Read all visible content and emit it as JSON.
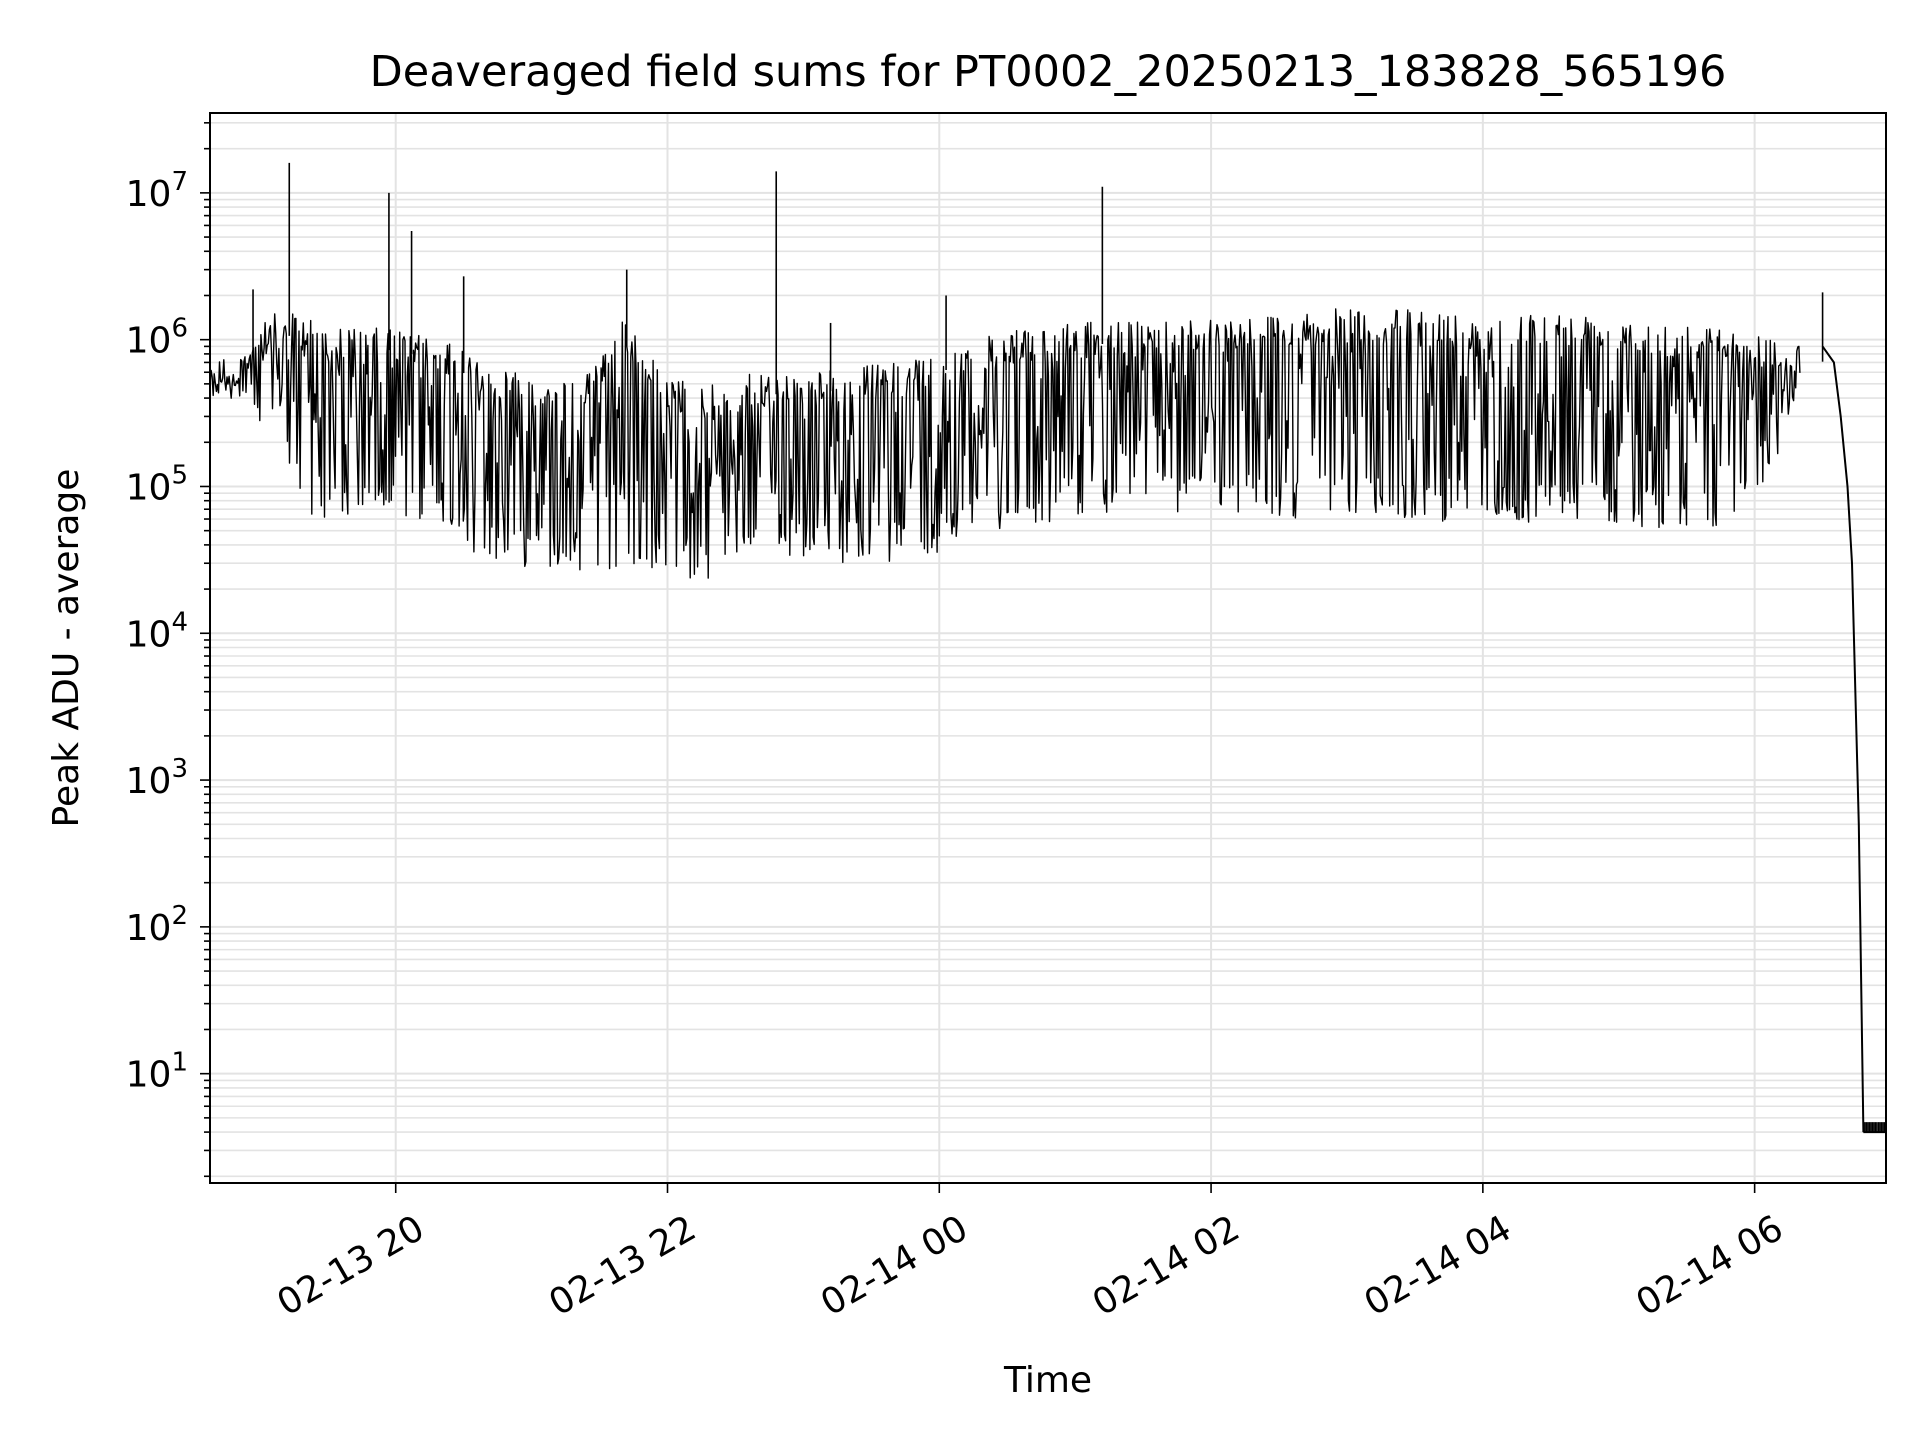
{
  "chart_data": {
    "type": "line",
    "title": "Deaveraged field sums for PT0002_20250213_183828_565196",
    "xlabel": "Time",
    "ylabel": "Peak ADU - average",
    "y_scale": "log",
    "ylim": [
      1.8,
      35000000
    ],
    "xlim": [
      "2025-02-13 18:38",
      "2025-02-14 06:58"
    ],
    "x_ticks": [
      {
        "label": "02-13 20",
        "time": "2025-02-13 20:00"
      },
      {
        "label": "02-13 22",
        "time": "2025-02-13 22:00"
      },
      {
        "label": "02-14 00",
        "time": "2025-02-14 00:00"
      },
      {
        "label": "02-14 02",
        "time": "2025-02-14 02:00"
      },
      {
        "label": "02-14 04",
        "time": "2025-02-14 04:00"
      },
      {
        "label": "02-14 06",
        "time": "2025-02-14 06:00"
      }
    ],
    "y_ticks": [
      {
        "base": "10",
        "exp": "1",
        "value": 10
      },
      {
        "base": "10",
        "exp": "2",
        "value": 100
      },
      {
        "base": "10",
        "exp": "3",
        "value": 1000
      },
      {
        "base": "10",
        "exp": "4",
        "value": 10000
      },
      {
        "base": "10",
        "exp": "5",
        "value": 100000
      },
      {
        "base": "10",
        "exp": "6",
        "value": 1000000
      },
      {
        "base": "10",
        "exp": "7",
        "value": 10000000
      }
    ],
    "grid": true,
    "line_color": "#000000",
    "series": [
      {
        "envelope": [
          {
            "t": "2025-02-13 18:38",
            "hi": 700000,
            "lo": 380000
          },
          {
            "t": "2025-02-13 18:50",
            "hi": 650000,
            "lo": 420000
          },
          {
            "t": "2025-02-13 19:00",
            "hi": 1500000,
            "lo": 200000
          },
          {
            "t": "2025-02-13 19:10",
            "hi": 1500000,
            "lo": 150000
          },
          {
            "t": "2025-02-13 19:20",
            "hi": 1500000,
            "lo": 65000
          },
          {
            "t": "2025-02-13 19:40",
            "hi": 1200000,
            "lo": 55000
          },
          {
            "t": "2025-02-13 20:00",
            "hi": 1200000,
            "lo": 60000
          },
          {
            "t": "2025-02-13 20:20",
            "hi": 1000000,
            "lo": 55000
          },
          {
            "t": "2025-02-13 20:40",
            "hi": 700000,
            "lo": 30000
          },
          {
            "t": "2025-02-13 21:00",
            "hi": 600000,
            "lo": 28000
          },
          {
            "t": "2025-02-13 21:20",
            "hi": 500000,
            "lo": 27000
          },
          {
            "t": "2025-02-13 21:40",
            "hi": 1400000,
            "lo": 25000
          },
          {
            "t": "2025-02-13 22:00",
            "hi": 550000,
            "lo": 24000
          },
          {
            "t": "2025-02-13 22:20",
            "hi": 500000,
            "lo": 22000
          },
          {
            "t": "2025-02-13 22:40",
            "hi": 600000,
            "lo": 35000
          },
          {
            "t": "2025-02-13 23:00",
            "hi": 600000,
            "lo": 32000
          },
          {
            "t": "2025-02-13 23:20",
            "hi": 650000,
            "lo": 30000
          },
          {
            "t": "2025-02-13 23:40",
            "hi": 700000,
            "lo": 30000
          },
          {
            "t": "2025-02-14 00:00",
            "hi": 850000,
            "lo": 35000
          },
          {
            "t": "2025-02-14 00:20",
            "hi": 1050000,
            "lo": 50000
          },
          {
            "t": "2025-02-14 00:40",
            "hi": 1200000,
            "lo": 55000
          },
          {
            "t": "2025-02-14 01:00",
            "hi": 1300000,
            "lo": 60000
          },
          {
            "t": "2025-02-14 01:30",
            "hi": 1350000,
            "lo": 65000
          },
          {
            "t": "2025-02-14 02:00",
            "hi": 1450000,
            "lo": 65000
          },
          {
            "t": "2025-02-14 02:30",
            "hi": 1500000,
            "lo": 60000
          },
          {
            "t": "2025-02-14 03:00",
            "hi": 1650000,
            "lo": 60000
          },
          {
            "t": "2025-02-14 03:30",
            "hi": 1600000,
            "lo": 60000
          },
          {
            "t": "2025-02-14 04:00",
            "hi": 1500000,
            "lo": 55000
          },
          {
            "t": "2025-02-14 04:30",
            "hi": 1550000,
            "lo": 55000
          },
          {
            "t": "2025-02-14 05:00",
            "hi": 1500000,
            "lo": 55000
          },
          {
            "t": "2025-02-14 05:30",
            "hi": 1300000,
            "lo": 50000
          },
          {
            "t": "2025-02-14 06:00",
            "hi": 1100000,
            "lo": 60000
          },
          {
            "t": "2025-02-14 06:20",
            "hi": 1000000,
            "lo": 400000
          }
        ],
        "spikes": [
          {
            "t": "2025-02-13 18:57",
            "value": 2200000
          },
          {
            "t": "2025-02-13 19:13",
            "value": 16000000
          },
          {
            "t": "2025-02-13 19:57",
            "value": 10000000
          },
          {
            "t": "2025-02-13 20:07",
            "value": 5500000
          },
          {
            "t": "2025-02-13 20:30",
            "value": 2700000
          },
          {
            "t": "2025-02-13 21:42",
            "value": 3000000
          },
          {
            "t": "2025-02-13 22:48",
            "value": 14000000
          },
          {
            "t": "2025-02-13 23:12",
            "value": 1300000
          },
          {
            "t": "2025-02-14 00:03",
            "value": 2000000
          },
          {
            "t": "2025-02-14 01:12",
            "value": 11000000
          },
          {
            "t": "2025-02-14 06:30",
            "value": 2100000
          }
        ],
        "tail": [
          {
            "t": "2025-02-14 06:30",
            "value": 900000
          },
          {
            "t": "2025-02-14 06:35",
            "value": 700000
          },
          {
            "t": "2025-02-14 06:38",
            "value": 300000
          },
          {
            "t": "2025-02-14 06:41",
            "value": 100000
          },
          {
            "t": "2025-02-14 06:43",
            "value": 30000
          },
          {
            "t": "2025-02-14 06:46",
            "value": 500
          },
          {
            "t": "2025-02-14 06:48",
            "value": 4
          }
        ],
        "floor": {
          "from": "2025-02-14 06:48",
          "to": "2025-02-14 06:58",
          "value": 4
        }
      }
    ]
  }
}
